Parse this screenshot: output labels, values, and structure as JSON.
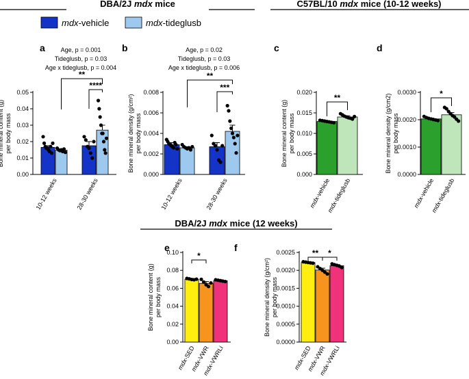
{
  "colors": {
    "dark_blue": "#1434c8",
    "light_blue": "#9ec9ee",
    "green": "#2ca02c",
    "light_green": "#bfe6bb",
    "yellow": "#ffee10",
    "orange": "#f7941d",
    "pink": "#f0327a",
    "dot": "#000000"
  },
  "headers": {
    "left": {
      "pre": "DBA/2J ",
      "em": "mdx",
      "post": " mice"
    },
    "right": {
      "pre": "C57BL/10 ",
      "em": "mdx",
      "post": " mice (10-12 weeks)"
    },
    "bottom": {
      "pre": "DBA/2J ",
      "em": "mdx",
      "post": " mice (12 weeks)"
    }
  },
  "legend": {
    "items": [
      {
        "em": "mdx",
        "label": "-vehicle",
        "color_key": "dark_blue"
      },
      {
        "em": "mdx",
        "label": "-tideglusb",
        "color_key": "light_blue"
      }
    ]
  },
  "chart_data": [
    {
      "panel": "a",
      "type": "bar",
      "ylabel": "Bone mineral content (g)",
      "ylabel2": "per body mass",
      "ylim": [
        0,
        0.05
      ],
      "yticks": [
        "0.00",
        "0.01",
        "0.02",
        "0.03",
        "0.04",
        "0.05"
      ],
      "categories": [
        "10-12 weeks",
        "28-30 weeks"
      ],
      "series": [
        {
          "name": "mdx-vehicle",
          "color_key": "dark_blue",
          "values": [
            0.0165,
            0.0175
          ],
          "errors": [
            0.001,
            0.0025
          ],
          "points": [
            [
              0.023,
              0.019,
              0.017,
              0.016,
              0.016,
              0.015,
              0.014,
              0.017,
              0.013,
              0.019
            ],
            [
              0.023,
              0.021,
              0.017,
              0.016,
              0.013,
              0.01,
              0.02
            ]
          ]
        },
        {
          "name": "mdx-tideglusb",
          "color_key": "light_blue",
          "values": [
            0.0148,
            0.027
          ],
          "errors": [
            0.0005,
            0.003
          ],
          "points": [
            [
              0.016,
              0.015,
              0.0145,
              0.015,
              0.014,
              0.0155,
              0.0135
            ],
            [
              0.045,
              0.04,
              0.035,
              0.03,
              0.025,
              0.025,
              0.02,
              0.015,
              0.013,
              0.022
            ]
          ]
        }
      ],
      "stats": [
        "Age, p = 0.001",
        "Tideglusb, p = 0.03",
        "Age x tideglusb, p = 0.004"
      ],
      "sig": [
        "**",
        "****"
      ]
    },
    {
      "panel": "b",
      "type": "bar",
      "ylabel": "Bone mineral density (g/cm²)",
      "ylabel2": "per body mass",
      "ylim": [
        0,
        0.008
      ],
      "yticks": [
        "0.000",
        "0.002",
        "0.004",
        "0.006",
        "0.008"
      ],
      "categories": [
        "10-12 weeks",
        "28-30 weeks"
      ],
      "series": [
        {
          "name": "mdx-vehicle",
          "color_key": "dark_blue",
          "values": [
            0.0029,
            0.0027
          ],
          "errors": [
            0.0002,
            0.0004
          ],
          "points": [
            [
              0.0034,
              0.0032,
              0.003,
              0.0029,
              0.0028,
              0.0027,
              0.0026,
              0.0031,
              0.0029,
              0.0025
            ],
            [
              0.0038,
              0.003,
              0.0028,
              0.0024,
              0.0014,
              0.0012,
              0.0028
            ]
          ]
        },
        {
          "name": "mdx-tideglusb",
          "color_key": "light_blue",
          "values": [
            0.0026,
            0.0042
          ],
          "errors": [
            0.0001,
            0.0006
          ],
          "points": [
            [
              0.0029,
              0.0027,
              0.0026,
              0.0025,
              0.0026,
              0.0024,
              0.0027
            ],
            [
              0.0067,
              0.0062,
              0.0052,
              0.0045,
              0.004,
              0.0036,
              0.003,
              0.0021,
              0.0038
            ]
          ]
        }
      ],
      "stats": [
        "Age, p = 0.02",
        "Tideglusb, p = 0.03",
        "Age x tideglusb, p = 0.006"
      ],
      "sig": [
        "**",
        "***"
      ]
    },
    {
      "panel": "c",
      "type": "bar",
      "ylabel": "Bone mineral content (g)",
      "ylabel2": "per body mass",
      "ylim": [
        0,
        0.02
      ],
      "yticks": [
        "0.000",
        "0.005",
        "0.010",
        "0.015",
        "0.020"
      ],
      "categories": [
        "-vehicle",
        "-tideglusb"
      ],
      "cat_em": "mdx",
      "series": [
        {
          "name": "mdx-vehicle",
          "color_key": "green",
          "value": 0.0129,
          "error": 0.0002,
          "points": [
            0.0132,
            0.0131,
            0.013,
            0.0129,
            0.0128,
            0.0127,
            0.0126
          ]
        },
        {
          "name": "mdx-tideglusb",
          "color_key": "light_green",
          "value": 0.014,
          "error": 0.0003,
          "points": [
            0.0148,
            0.0145,
            0.0142,
            0.014,
            0.0138,
            0.0137,
            0.0135,
            0.0141
          ]
        }
      ],
      "sig": [
        "**"
      ]
    },
    {
      "panel": "d",
      "type": "bar",
      "ylabel": "Bone mineral density (g/cm2)",
      "ylabel2": "per body mass",
      "ylim": [
        0,
        0.003
      ],
      "yticks": [
        "0.0000",
        "0.0010",
        "0.0020",
        "0.0030"
      ],
      "categories": [
        "-vehicle",
        "-tideglusb"
      ],
      "cat_em": "mdx",
      "series": [
        {
          "name": "mdx-vehicle",
          "color_key": "green",
          "value": 0.00203,
          "error": 3e-05,
          "points": [
            0.00212,
            0.00208,
            0.00205,
            0.00203,
            0.00201,
            0.00199,
            0.00197
          ]
        },
        {
          "name": "mdx-tideglusb",
          "color_key": "light_green",
          "value": 0.00218,
          "error": 8e-05,
          "points": [
            0.00245,
            0.0024,
            0.0023,
            0.00222,
            0.00215,
            0.0021,
            0.00202,
            0.00195
          ]
        }
      ],
      "sig": [
        "*"
      ]
    },
    {
      "panel": "e",
      "type": "bar",
      "ylabel": "Bone mineral content (g)",
      "ylabel2": "per body mass",
      "ylim": [
        0,
        0.1
      ],
      "yticks": [
        "0.00",
        "0.02",
        "0.04",
        "0.06",
        "0.08",
        "0.10"
      ],
      "categories": [
        "-SED",
        "-VWR",
        "-VWRLi"
      ],
      "cat_em": "mdx",
      "series": [
        {
          "name": "mdx-SED",
          "color_key": "yellow",
          "value": 0.07,
          "error": 0.001,
          "points": [
            0.071,
            0.0705,
            0.0698,
            0.0695,
            0.0702
          ]
        },
        {
          "name": "mdx-VWR",
          "color_key": "orange",
          "value": 0.0655,
          "error": 0.002,
          "points": [
            0.07,
            0.067,
            0.064,
            0.062,
            0.066
          ]
        },
        {
          "name": "mdx-VWRLi",
          "color_key": "pink",
          "value": 0.0685,
          "error": 0.001,
          "points": [
            0.0695,
            0.069,
            0.0685,
            0.068,
            0.0675
          ]
        }
      ],
      "sig": [
        "*"
      ]
    },
    {
      "panel": "f",
      "type": "bar",
      "ylabel": "Bone mineral density (g/cm²)",
      "ylabel2": "per body mass",
      "ylim": [
        0,
        0.0025
      ],
      "yticks": [
        "0.0000",
        "0.0005",
        "0.0010",
        "0.0015",
        "0.0020",
        "0.0025"
      ],
      "categories": [
        "-SED",
        "-VWR",
        "-VWRLi"
      ],
      "cat_em": "mdx",
      "series": [
        {
          "name": "mdx-SED",
          "color_key": "yellow",
          "value": 0.00222,
          "error": 2e-05,
          "points": [
            0.00224,
            0.00223,
            0.00222,
            0.00221,
            0.0022
          ]
        },
        {
          "name": "mdx-VWR",
          "color_key": "orange",
          "value": 0.00201,
          "error": 5e-05,
          "points": [
            0.0021,
            0.00205,
            0.002,
            0.00195,
            0.0019
          ]
        },
        {
          "name": "mdx-VWRLi",
          "color_key": "pink",
          "value": 0.00213,
          "error": 3e-05,
          "points": [
            0.00218,
            0.00216,
            0.00214,
            0.00212,
            0.00208
          ]
        }
      ],
      "sig": [
        "**",
        "*"
      ]
    }
  ]
}
